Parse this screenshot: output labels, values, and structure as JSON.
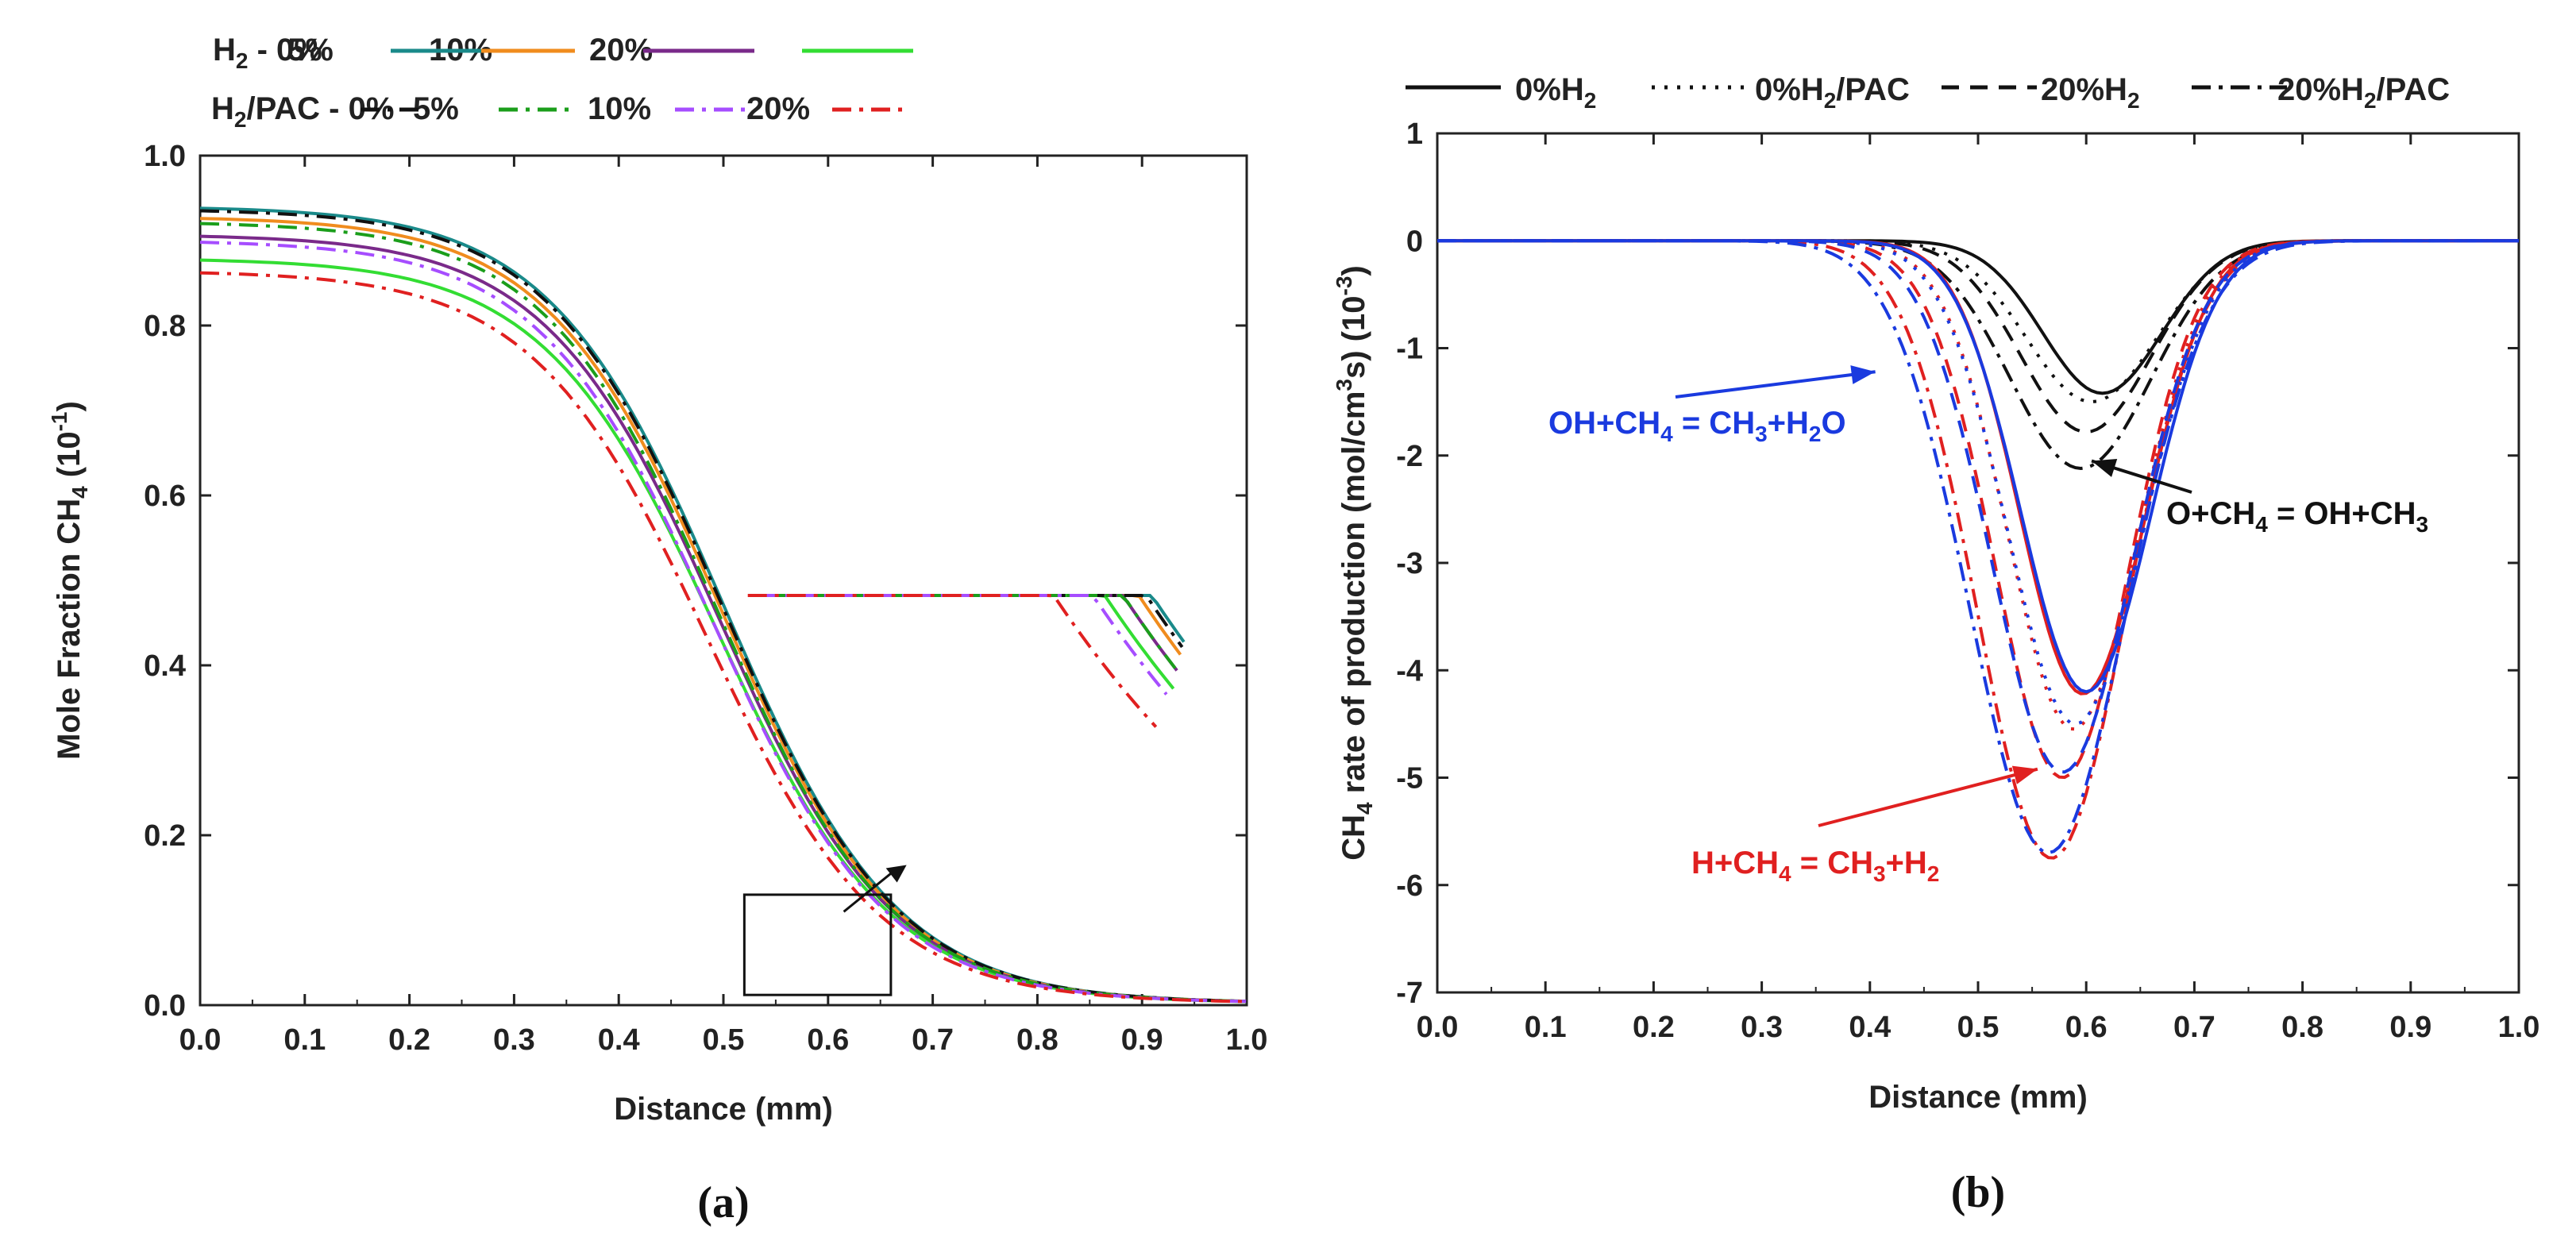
{
  "chart_data": [
    {
      "panel": "(a)",
      "type": "line",
      "xlabel": "Distance (mm)",
      "ylabel": "Mole Fraction CH",
      "ylabel_sub": "4",
      "ylabel_tail": " (10",
      "ylabel_sup": "-1",
      "ylabel_end": ")",
      "xlim": [
        0.0,
        1.0
      ],
      "ylim": [
        0.0,
        1.0
      ],
      "xticks": [
        "0.0",
        "0.1",
        "0.2",
        "0.3",
        "0.4",
        "0.5",
        "0.6",
        "0.7",
        "0.8",
        "0.9",
        "1.0"
      ],
      "yticks": [
        "0.0",
        "0.2",
        "0.4",
        "0.6",
        "0.8",
        "1.0"
      ],
      "legend": {
        "row1_prefix": "H",
        "row1_prefix_sub": "2",
        "row1_prefix_tail": " - ",
        "row2_prefix": "H",
        "row2_prefix_sub": "2",
        "row2_prefix_tail": "/PAC - ",
        "items": [
          "0%",
          "5%",
          "10%",
          "20%"
        ]
      },
      "series": [
        {
          "name": "H2 - 0%",
          "color": "#1a8a8a",
          "dash": "solid",
          "y0": 0.938,
          "x_mid": 0.5
        },
        {
          "name": "H2 - 5%",
          "color": "#f08c1e",
          "dash": "solid",
          "y0": 0.926,
          "x_mid": 0.498
        },
        {
          "name": "H2 - 10%",
          "color": "#7a2a8a",
          "dash": "solid",
          "y0": 0.905,
          "x_mid": 0.496
        },
        {
          "name": "H2 - 20%",
          "color": "#33dd33",
          "dash": "solid",
          "y0": 0.877,
          "x_mid": 0.494
        },
        {
          "name": "H2/PAC - 0%",
          "color": "#111111",
          "dash": "dashdot",
          "y0": 0.935,
          "x_mid": 0.499
        },
        {
          "name": "H2/PAC - 5%",
          "color": "#1b9e1b",
          "dash": "dashdot",
          "y0": 0.92,
          "x_mid": 0.495
        },
        {
          "name": "H2/PAC - 10%",
          "color": "#a64dff",
          "dash": "dashdot",
          "y0": 0.898,
          "x_mid": 0.49
        },
        {
          "name": "H2/PAC - 20%",
          "color": "#e02020",
          "dash": "dashdot",
          "y0": 0.862,
          "x_mid": 0.484
        }
      ],
      "inset_box": {
        "x": [
          0.52,
          0.66
        ],
        "y": [
          0.012,
          0.13
        ]
      }
    },
    {
      "panel": "(b)",
      "type": "line",
      "xlabel": "Distance (mm)",
      "ylabel_pre": "CH",
      "ylabel_pre_sub": "4",
      "ylabel_mid": " rate of production (mol/cm",
      "ylabel_mid_sup": "3",
      "ylabel_mid_tail": "s) (10",
      "ylabel_sup": "-3",
      "ylabel_end": ")",
      "xlim": [
        0.0,
        1.0
      ],
      "ylim": [
        -7,
        1
      ],
      "xticks": [
        "0.0",
        "0.1",
        "0.2",
        "0.3",
        "0.4",
        "0.5",
        "0.6",
        "0.7",
        "0.8",
        "0.9",
        "1.0"
      ],
      "yticks": [
        "-7",
        "-6",
        "-5",
        "-4",
        "-3",
        "-2",
        "-1",
        "0",
        "1"
      ],
      "legend": [
        {
          "pre": "0%H",
          "sub": "2",
          "post": "",
          "dash": "solid"
        },
        {
          "pre": "0%H",
          "sub": "2",
          "post": "/PAC",
          "dash": "dotted"
        },
        {
          "pre": "20%H",
          "sub": "2",
          "post": "",
          "dash": "dashed"
        },
        {
          "pre": "20%H",
          "sub": "2",
          "post": "/PAC",
          "dash": "dashdot"
        }
      ],
      "series": [
        {
          "reaction": "O+CH4 = OH+CH3",
          "case": "0%H2",
          "color": "#111111",
          "dash": "solid",
          "x0": 0.615,
          "sigma": 0.055,
          "peak": -1.42
        },
        {
          "reaction": "O+CH4 = OH+CH3",
          "case": "0%H2/PAC",
          "color": "#111111",
          "dash": "dotted",
          "x0": 0.605,
          "sigma": 0.06,
          "peak": -1.5
        },
        {
          "reaction": "O+CH4 = OH+CH3",
          "case": "20%H2",
          "color": "#111111",
          "dash": "dashed",
          "x0": 0.6,
          "sigma": 0.06,
          "peak": -1.78
        },
        {
          "reaction": "O+CH4 = OH+CH3",
          "case": "20%H2/PAC",
          "color": "#111111",
          "dash": "dashdot",
          "x0": 0.595,
          "sigma": 0.065,
          "peak": -2.12
        },
        {
          "reaction": "H+CH4 = CH3+H2",
          "case": "0%H2",
          "color": "#e02020",
          "dash": "solid",
          "x0": 0.597,
          "sigma": 0.058,
          "peak": -4.22
        },
        {
          "reaction": "H+CH4 = CH3+H2",
          "case": "0%H2/PAC",
          "color": "#e02020",
          "dash": "dotted",
          "x0": 0.588,
          "sigma": 0.06,
          "peak": -4.55
        },
        {
          "reaction": "H+CH4 = CH3+H2",
          "case": "20%H2",
          "color": "#e02020",
          "dash": "dashed",
          "x0": 0.578,
          "sigma": 0.062,
          "peak": -5.0
        },
        {
          "reaction": "H+CH4 = CH3+H2",
          "case": "20%H2/PAC",
          "color": "#e02020",
          "dash": "dashdot",
          "x0": 0.568,
          "sigma": 0.068,
          "peak": -5.75
        },
        {
          "reaction": "OH+CH4 = CH3+H2O",
          "case": "0%H2",
          "color": "#1a3adf",
          "dash": "solid",
          "x0": 0.6,
          "sigma": 0.06,
          "peak": -4.2
        },
        {
          "reaction": "OH+CH4 = CH3+H2O",
          "case": "0%H2/PAC",
          "color": "#1a3adf",
          "dash": "dotted",
          "x0": 0.59,
          "sigma": 0.062,
          "peak": -4.5
        },
        {
          "reaction": "OH+CH4 = CH3+H2O",
          "case": "20%H2",
          "color": "#1a3adf",
          "dash": "dashed",
          "x0": 0.578,
          "sigma": 0.065,
          "peak": -4.95
        },
        {
          "reaction": "OH+CH4 = CH3+H2O",
          "case": "20%H2/PAC",
          "color": "#1a3adf",
          "dash": "dashdot",
          "x0": 0.565,
          "sigma": 0.072,
          "peak": -5.7
        }
      ],
      "annotations": [
        {
          "pre": "OH+CH",
          "s1": "4",
          "mid": " = CH",
          "s2": "3",
          "post": "+H",
          "s3": "2",
          "tail": "O",
          "color": "#1a3adf",
          "arrow_to": [
            0.405,
            -1.22
          ]
        },
        {
          "pre": "O+CH",
          "s1": "4",
          "mid": " = OH+CH",
          "s2": "3",
          "post": "",
          "s3": "",
          "tail": "",
          "color": "#111111",
          "arrow_to": [
            0.605,
            -2.05
          ]
        },
        {
          "pre": "H+CH",
          "s1": "4",
          "mid": " = CH",
          "s2": "3",
          "post": "+H",
          "s3": "2",
          "tail": "",
          "color": "#e02020",
          "arrow_to": [
            0.555,
            -4.92
          ]
        }
      ]
    }
  ],
  "captions": [
    "(a)",
    "(b)"
  ]
}
